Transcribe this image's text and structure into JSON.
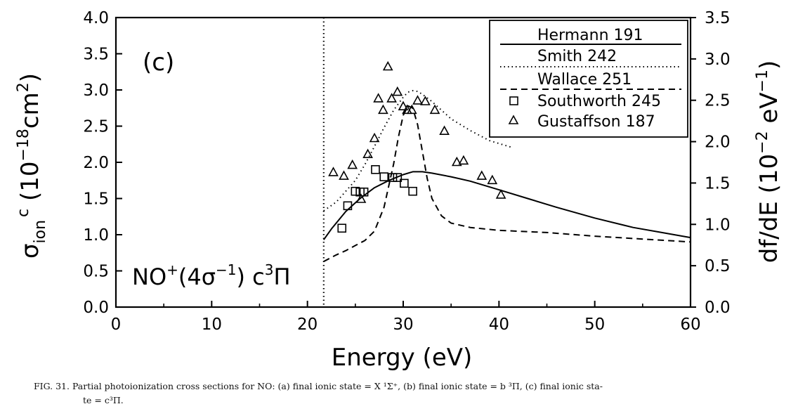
{
  "chart_data": {
    "type": "scatter",
    "panel_label": "(c)",
    "state_label": {
      "prefix": "NO",
      "sup1": "+",
      "mid": "(4σ",
      "sup2": "−1",
      "mid2": ") c",
      "sup3": "3",
      "end": "Π"
    },
    "xlabel": "Energy (eV)",
    "ylabel": {
      "sigma": "σ",
      "sub": "ion",
      "sup": "c",
      "rest": " (10",
      "exp": "−18",
      "unit": "cm",
      "unit_exp": "2",
      "close": ")"
    },
    "y2label": {
      "main": "df/dE (10",
      "exp": "−2",
      "unit": " eV",
      "unit_exp": "−1",
      "close": ")"
    },
    "xlim": [
      0,
      60
    ],
    "ylim": [
      0,
      4.0
    ],
    "y2lim": [
      0,
      3.5
    ],
    "xticks": [
      "0",
      "10",
      "20",
      "30",
      "40",
      "50",
      "60"
    ],
    "yticks": [
      "0.0",
      "0.5",
      "1.0",
      "1.5",
      "2.0",
      "2.5",
      "3.0",
      "3.5",
      "4.0"
    ],
    "y2ticks": [
      "0.0",
      "0.5",
      "1.0",
      "1.5",
      "2.0",
      "2.5",
      "3.0",
      "3.5"
    ],
    "threshold_x": 21.7,
    "legend": [
      "Hermann 191",
      "Smith 242",
      "Wallace 251",
      "Southworth 245",
      "Gustaffson 187"
    ],
    "series": [
      {
        "name": "Hermann 191",
        "kind": "line",
        "style": "solid",
        "x": [
          21.7,
          22.5,
          24,
          25.5,
          27,
          28.5,
          30,
          31,
          32,
          33,
          35,
          37,
          40,
          43,
          46,
          50,
          54,
          57,
          60
        ],
        "y": [
          0.93,
          1.08,
          1.32,
          1.5,
          1.65,
          1.75,
          1.83,
          1.87,
          1.87,
          1.85,
          1.8,
          1.74,
          1.62,
          1.5,
          1.38,
          1.23,
          1.1,
          1.03,
          0.96
        ]
      },
      {
        "name": "Smith 242",
        "kind": "line",
        "style": "dotted",
        "x": [
          21.7,
          23,
          24,
          25,
          26,
          27,
          28,
          29,
          30,
          30.5,
          31,
          31.5,
          32,
          33,
          34,
          35,
          37,
          39,
          41.5
        ],
        "y": [
          1.33,
          1.45,
          1.6,
          1.75,
          1.97,
          2.22,
          2.48,
          2.72,
          2.9,
          2.97,
          2.99,
          2.98,
          2.94,
          2.84,
          2.72,
          2.6,
          2.44,
          2.3,
          2.2
        ]
      },
      {
        "name": "Wallace 251",
        "kind": "line",
        "style": "dashed",
        "x": [
          21.7,
          23,
          24,
          25,
          26,
          27,
          28,
          29,
          29.5,
          30,
          30.5,
          31,
          31.5,
          32,
          32.5,
          33,
          34,
          35,
          37,
          40,
          45,
          50,
          55,
          60
        ],
        "y": [
          0.63,
          0.72,
          0.78,
          0.85,
          0.92,
          1.05,
          1.38,
          1.98,
          2.35,
          2.65,
          2.78,
          2.75,
          2.52,
          2.15,
          1.78,
          1.5,
          1.26,
          1.16,
          1.1,
          1.06,
          1.03,
          0.98,
          0.94,
          0.9
        ]
      },
      {
        "name": "Southworth 245",
        "kind": "points",
        "marker": "square",
        "x": [
          23.6,
          24.2,
          25.0,
          25.5,
          25.9,
          27.1,
          28.0,
          28.9,
          29.4,
          30.1,
          31.0
        ],
        "y": [
          1.09,
          1.4,
          1.6,
          1.59,
          1.59,
          1.9,
          1.8,
          1.79,
          1.79,
          1.71,
          1.6
        ]
      },
      {
        "name": "Gustaffson 187",
        "kind": "points",
        "marker": "triangle",
        "x": [
          22.7,
          23.8,
          24.7,
          25.6,
          26.3,
          27.0,
          27.4,
          27.9,
          28.4,
          28.8,
          29.4,
          30.0,
          30.4,
          30.9,
          31.5,
          32.3,
          33.3,
          34.3,
          35.6,
          36.3,
          38.2,
          39.3,
          40.2
        ],
        "y": [
          1.86,
          1.81,
          1.96,
          1.49,
          2.11,
          2.33,
          2.88,
          2.72,
          3.32,
          2.88,
          2.97,
          2.77,
          2.72,
          2.72,
          2.85,
          2.84,
          2.72,
          2.43,
          2.0,
          2.02,
          1.81,
          1.75,
          1.55
        ]
      }
    ]
  },
  "caption": {
    "line1": "FIG. 31. Partial photoionization cross sections for NO: (a) final ionic state = X ¹Σ⁺, (b) final ionic state = b ³Π, (c) final ionic sta-",
    "line2": "te = c³Π."
  }
}
